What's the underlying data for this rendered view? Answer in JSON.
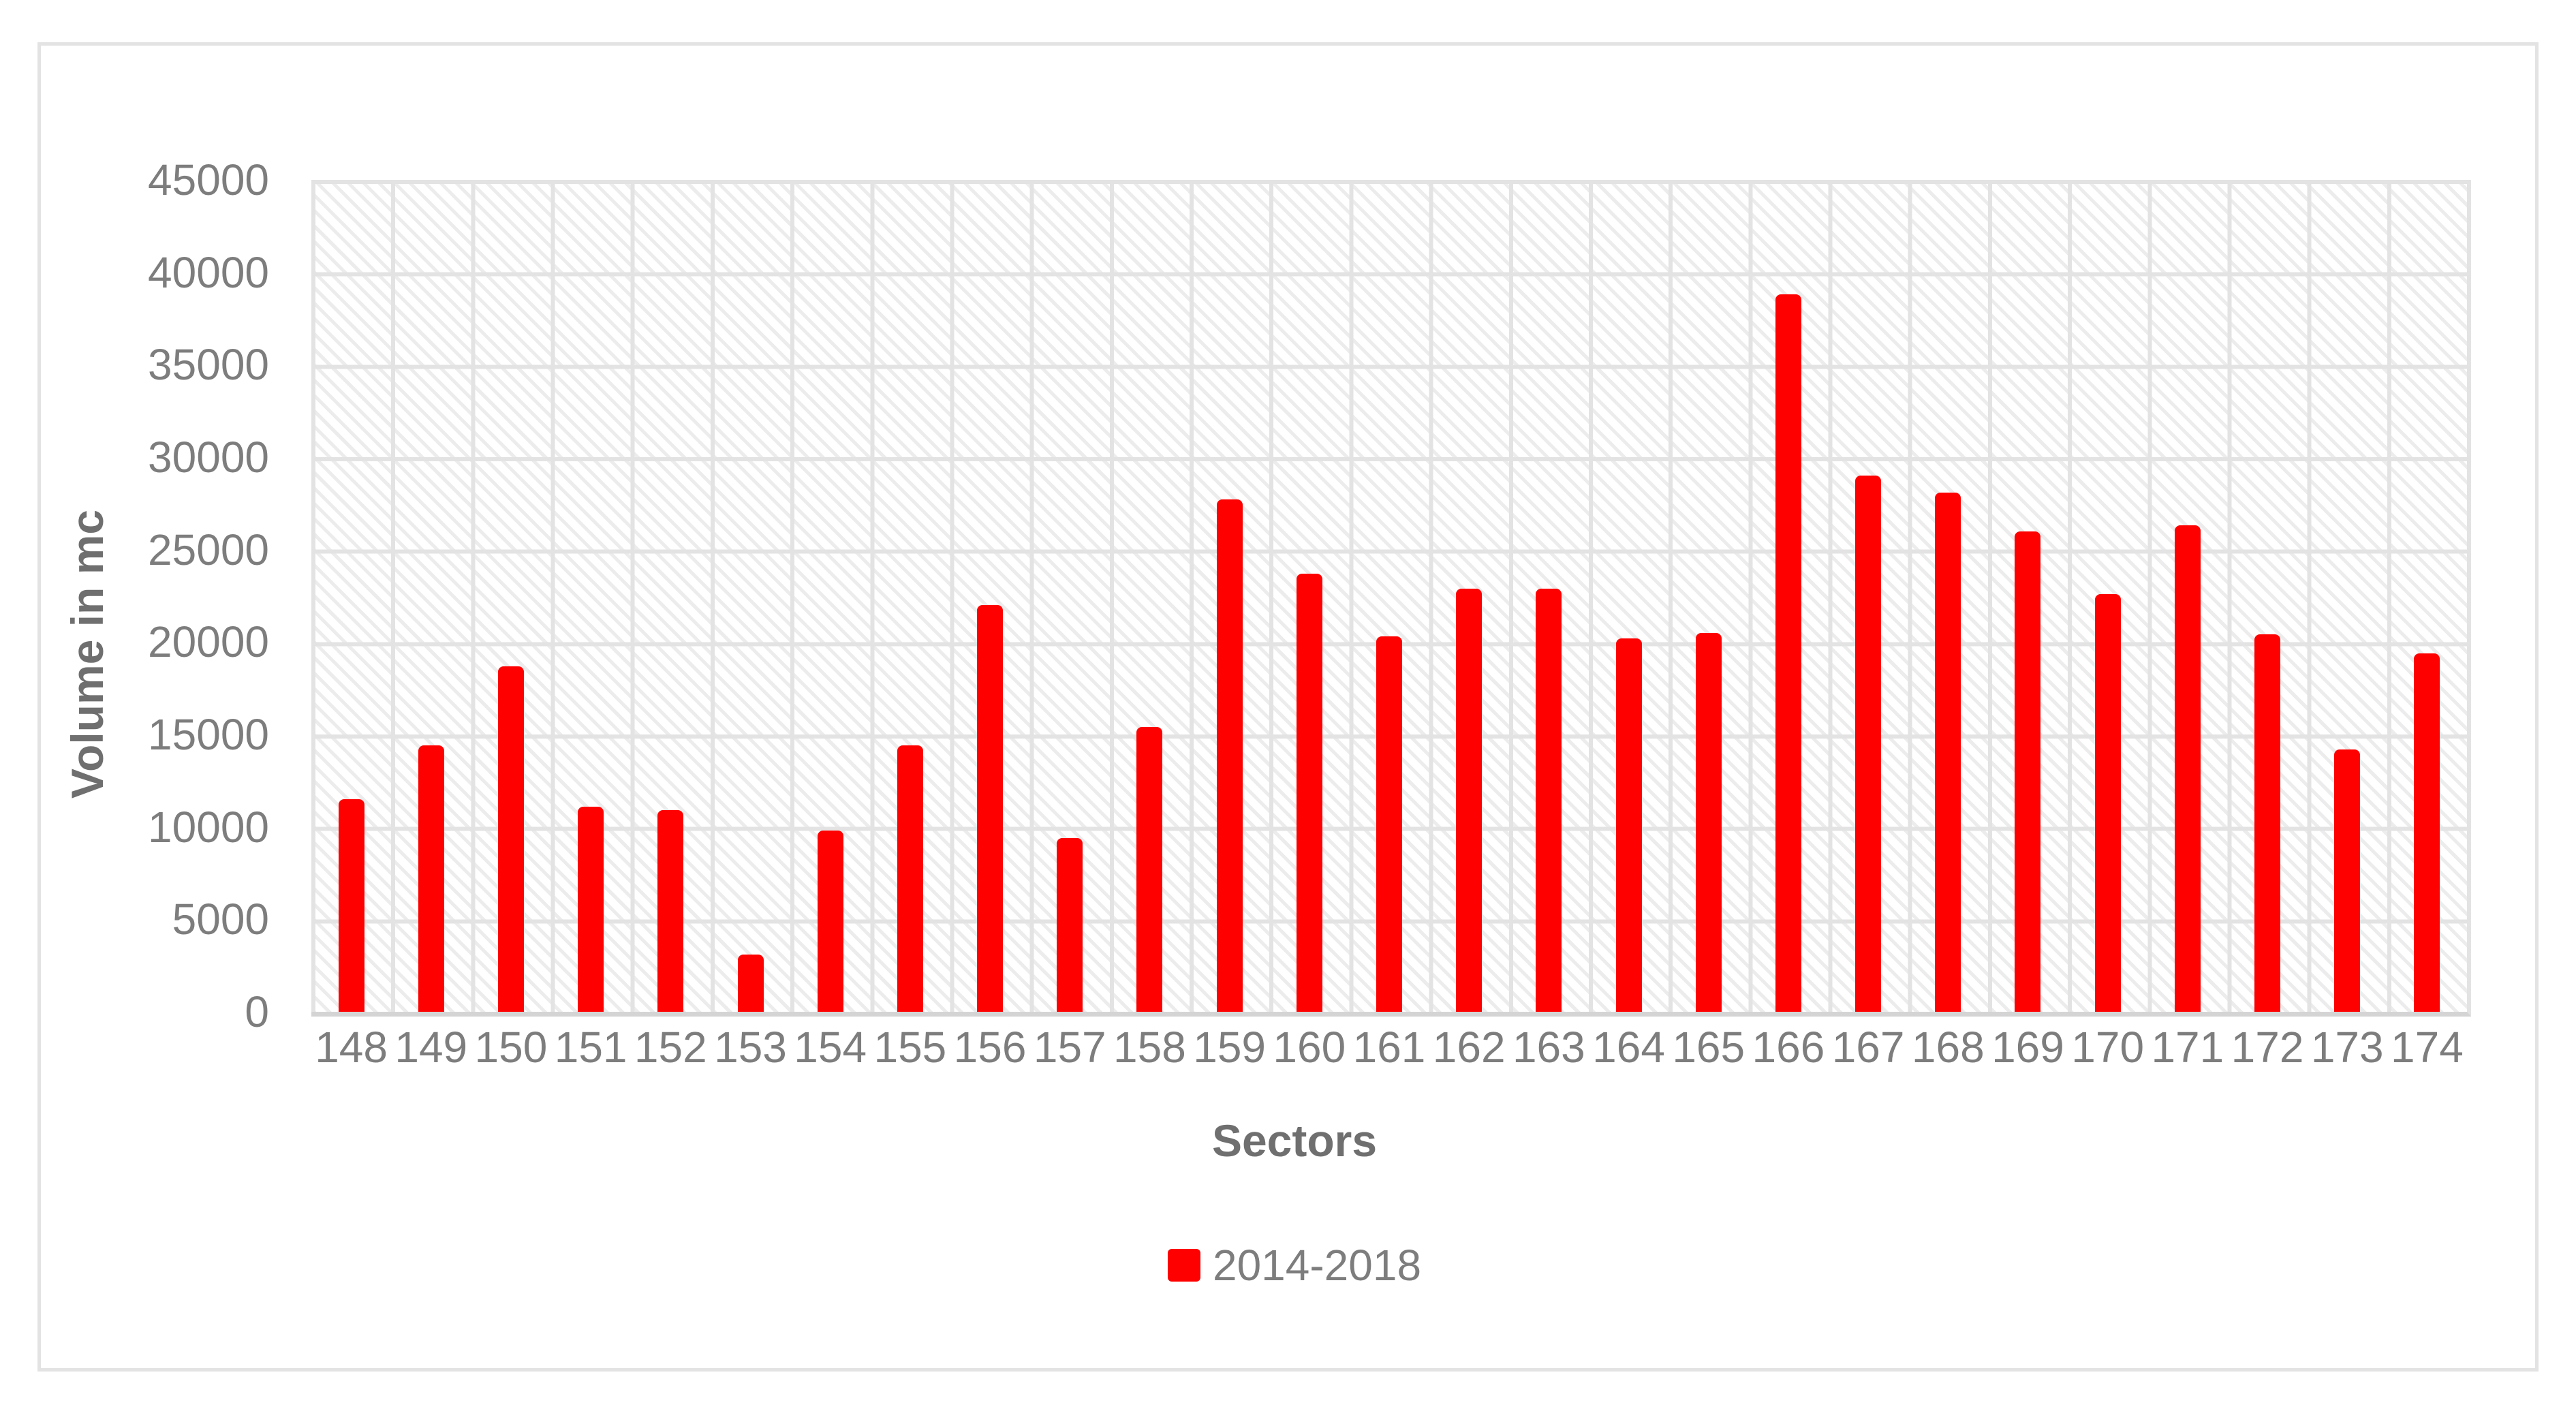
{
  "chart_data": {
    "type": "bar",
    "title": "",
    "xlabel": "Sectors",
    "ylabel": "Volume in mc",
    "categories": [
      "148",
      "149",
      "150",
      "151",
      "152",
      "153",
      "154",
      "155",
      "156",
      "157",
      "158",
      "159",
      "160",
      "161",
      "162",
      "163",
      "164",
      "165",
      "166",
      "167",
      "168",
      "169",
      "170",
      "171",
      "172",
      "173",
      "174"
    ],
    "series": [
      {
        "name": "2014-2018",
        "color": "#FF0000",
        "values": [
          11500,
          14400,
          18700,
          11100,
          10900,
          3100,
          9800,
          14400,
          22000,
          9400,
          15400,
          27700,
          23700,
          20300,
          22900,
          22900,
          20200,
          20500,
          38800,
          29000,
          28100,
          26000,
          22600,
          26300,
          20400,
          14200,
          19400
        ]
      }
    ],
    "ylim": [
      0,
      45000
    ],
    "ytick_step": 5000,
    "yticks": [
      "45000",
      "40000",
      "35000",
      "30000",
      "25000",
      "20000",
      "15000",
      "10000",
      "5000",
      "0"
    ],
    "grid": true,
    "legend_position": "bottom",
    "plot_background": "diagonal-hatch"
  },
  "legend": {
    "label": "2014-2018"
  },
  "colors": {
    "bar": "#FF0000",
    "gridline": "#E3E3E3",
    "axis_line": "#D4D4D4",
    "tick_text": "#7D7D7D",
    "title_text": "#6F6F6F",
    "frame_border": "#E3E3E3",
    "hatch": "#DCDCDC",
    "background": "#FFFFFF"
  }
}
